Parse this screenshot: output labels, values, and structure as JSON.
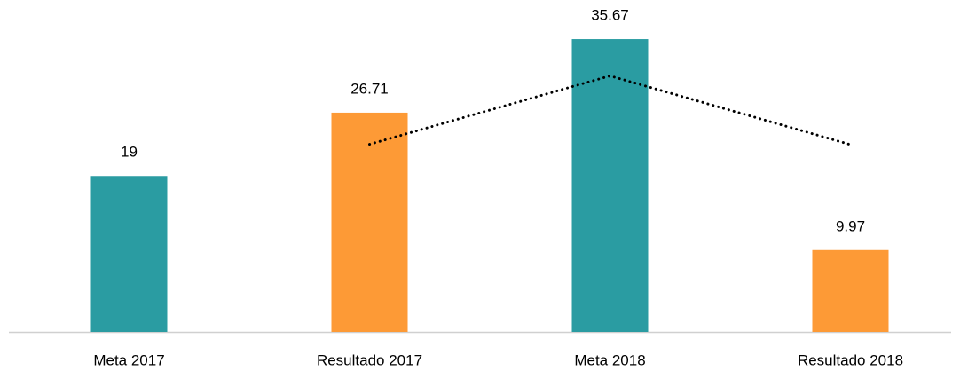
{
  "chart_data": {
    "type": "bar",
    "categories": [
      "Meta 2017",
      "Resultado 2017",
      "Meta 2018",
      "Resultado 2018"
    ],
    "values": [
      19,
      26.71,
      35.67,
      9.97
    ],
    "colors": [
      "#2a9ca2",
      "#fd9a36",
      "#2a9ca2",
      "#fd9a36"
    ],
    "ylim": [
      0,
      40
    ],
    "trendline": {
      "values": [
        null,
        22.86,
        31.19,
        22.82
      ],
      "color": "#000000",
      "style": "dotted"
    }
  }
}
